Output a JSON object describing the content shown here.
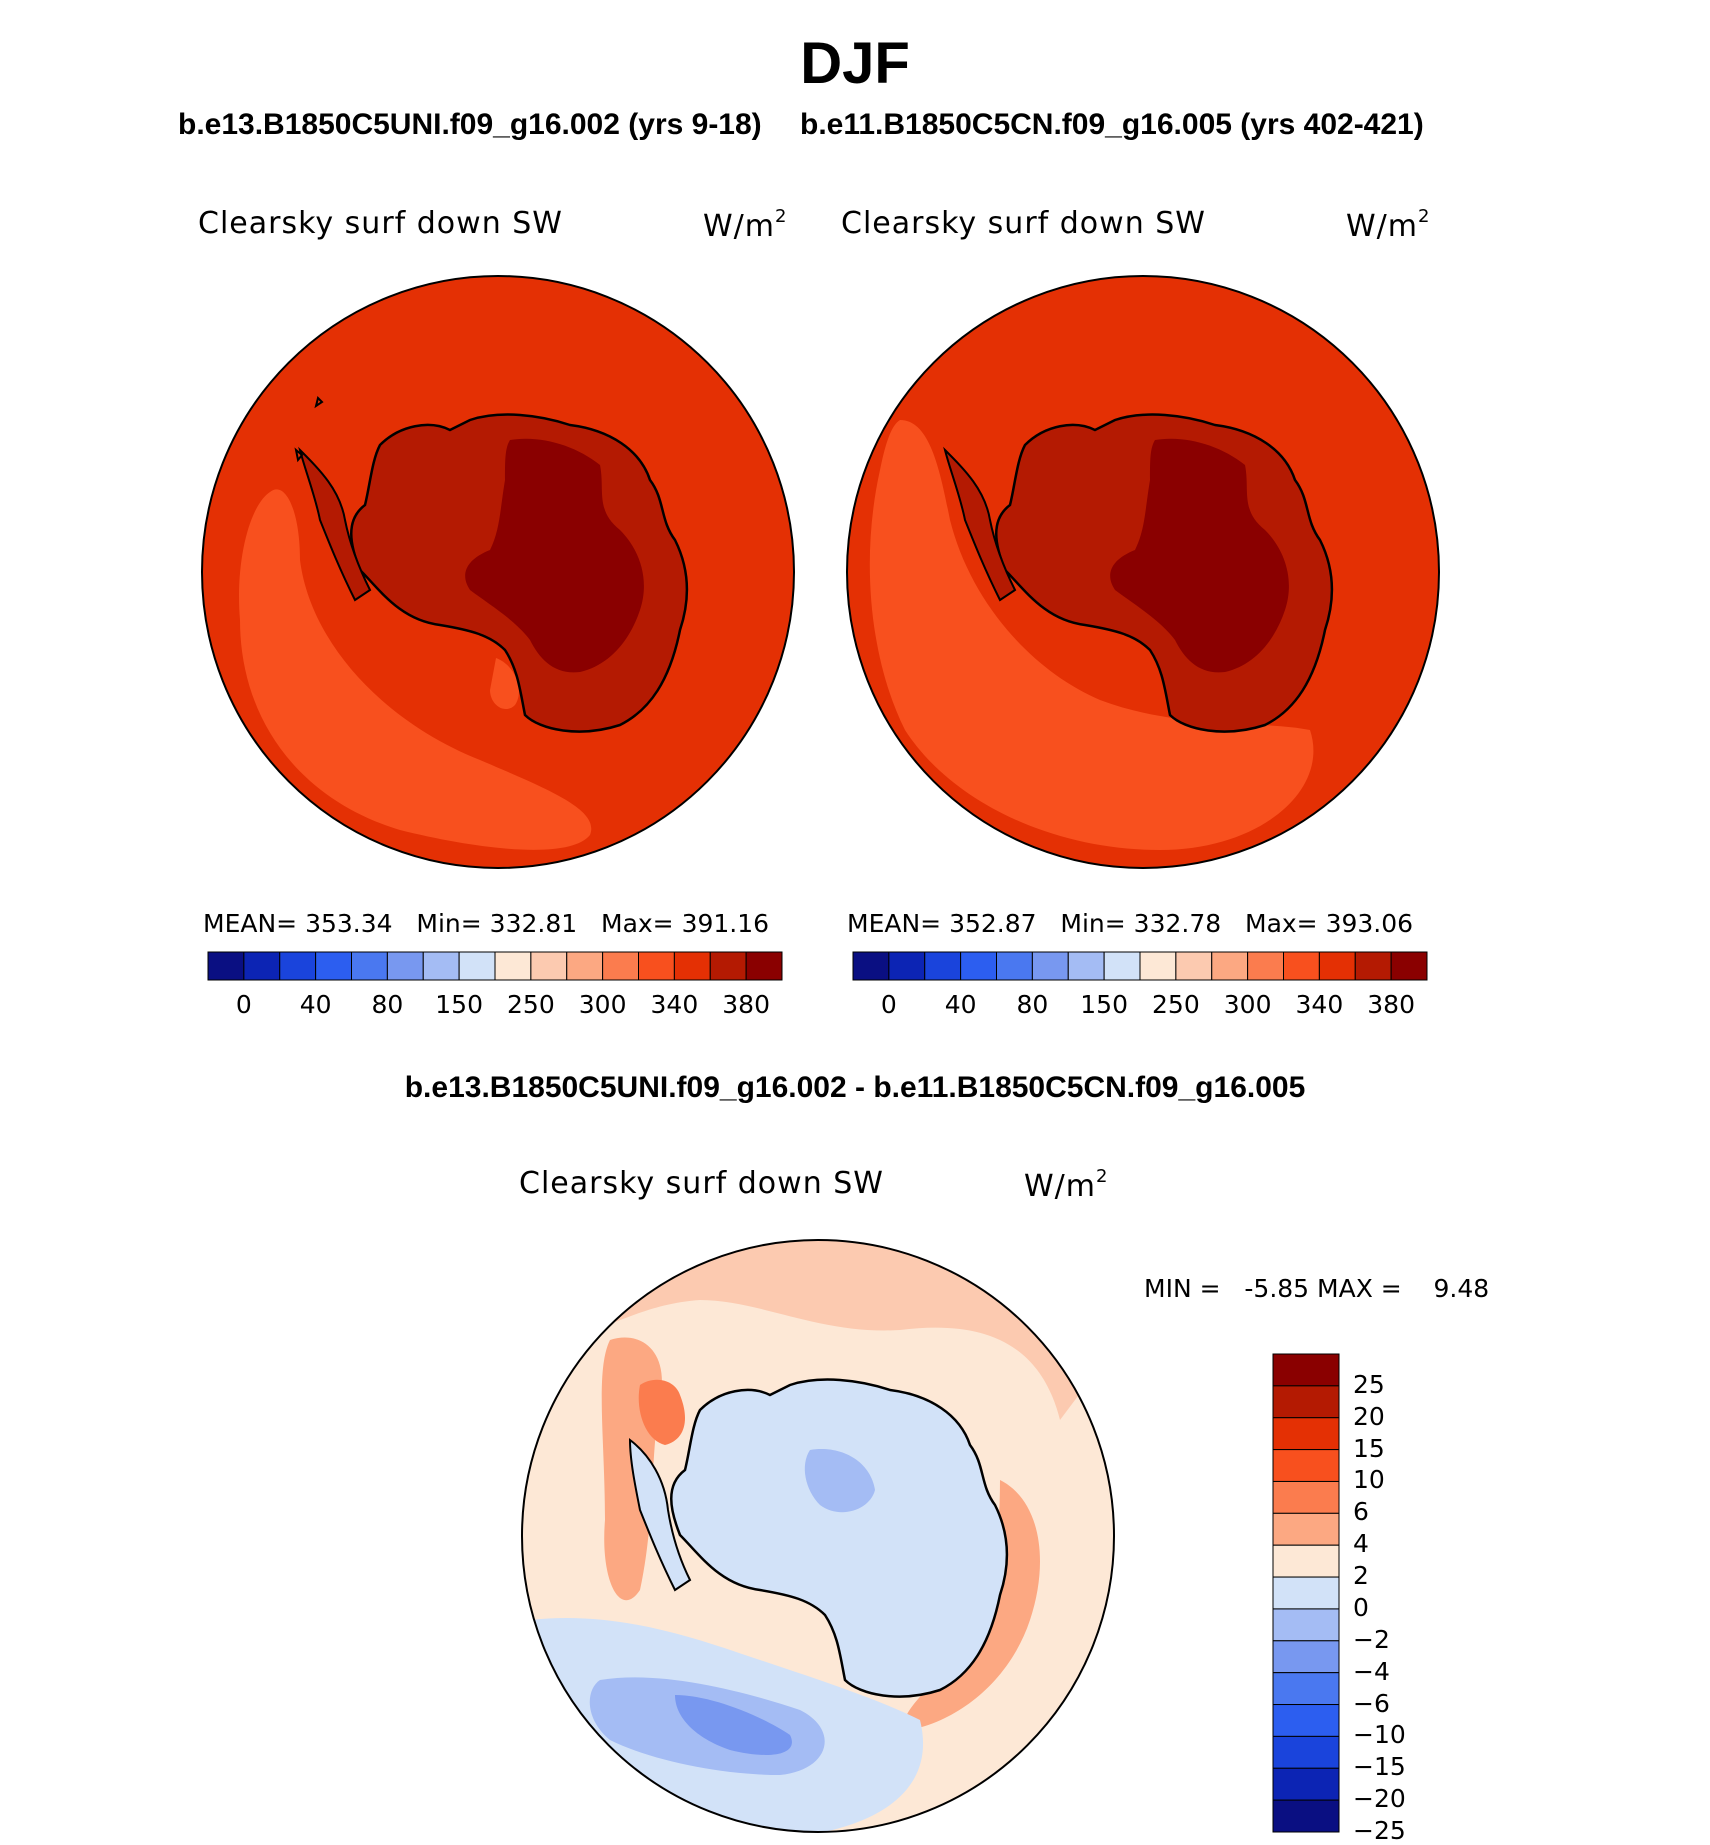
{
  "chart_data": {
    "type": "polar-map-contour",
    "title": "DJF",
    "variable": "Clearsky surf down SW",
    "units_base": "W/m",
    "units_exp": "2",
    "panels": [
      {
        "case": "b.e13.B1850C5UNI.f09_g16.002 (yrs 9-18)",
        "stats": {
          "mean_label": "MEAN=",
          "mean": "353.34",
          "min_label": "Min=",
          "min": "332.81",
          "max_label": "Max=",
          "max": "391.16"
        }
      },
      {
        "case": "b.e11.B1850C5CN.f09_g16.005 (yrs 402-421)",
        "stats": {
          "mean_label": "MEAN=",
          "mean": "352.87",
          "min_label": "Min=",
          "min": "332.78",
          "max_label": "Max=",
          "max": "393.06"
        }
      }
    ],
    "abs_colorbar": {
      "colors": [
        "#0a0f82",
        "#0c24b4",
        "#1a44dc",
        "#2c5ef0",
        "#4a78f0",
        "#7898f0",
        "#a4bcf4",
        "#d2e2f8",
        "#fde8d6",
        "#fccab0",
        "#fca882",
        "#fb7c4e",
        "#f8501e",
        "#e43004",
        "#b41a02",
        "#8a0000"
      ],
      "ticks": [
        "0",
        "40",
        "80",
        "150",
        "250",
        "300",
        "340",
        "380"
      ]
    },
    "diff": {
      "title": "b.e13.B1850C5UNI.f09_g16.002 - b.e11.B1850C5CN.f09_g16.005",
      "min_label": "MIN =",
      "min": "-5.85",
      "max_label": "MAX =",
      "max": "9.48",
      "colorbar": {
        "colors": [
          "#8a0000",
          "#b41a02",
          "#e43004",
          "#f8501e",
          "#fb7c4e",
          "#fca882",
          "#fde8d6",
          "#d2e2f8",
          "#a4bcf4",
          "#7898f0",
          "#4a78f0",
          "#2c5ef0",
          "#1a44dc",
          "#0c24b4",
          "#0a0f82"
        ],
        "ticks": [
          "25",
          "20",
          "15",
          "10",
          "6",
          "4",
          "2",
          "0",
          "−2",
          "−4",
          "−6",
          "−10",
          "−15",
          "−20",
          "−25"
        ]
      }
    }
  }
}
